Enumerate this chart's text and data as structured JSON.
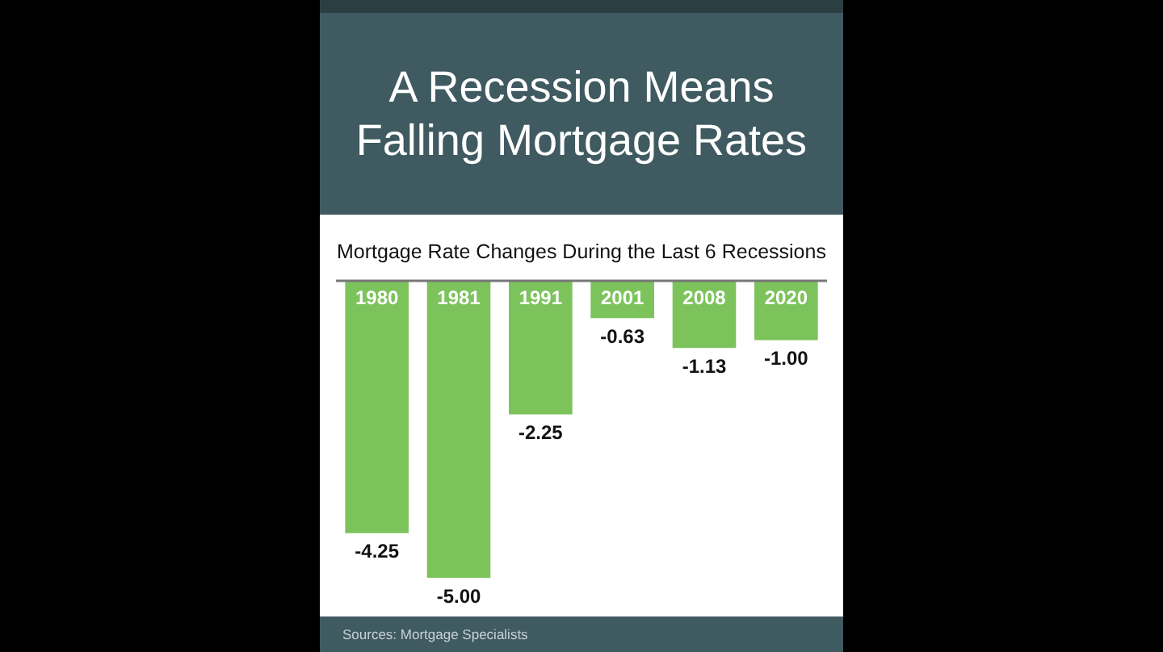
{
  "chart_data": {
    "type": "bar",
    "title": "A Recession Means Falling Mortgage Rates",
    "subtitle": "Mortgage Rate Changes During the Last 6 Recessions",
    "categories": [
      "1980",
      "1981",
      "1991",
      "2001",
      "2008",
      "2020"
    ],
    "values": [
      -4.25,
      -5.0,
      -2.25,
      -0.63,
      -1.13,
      -1.0
    ],
    "value_labels": [
      "-4.25",
      "-5.00",
      "-2.25",
      "-0.63",
      "-1.13",
      "-1.00"
    ],
    "color": "#7cc35c",
    "legend": false,
    "annotations": [
      "Sources: Mortgage Specialists"
    ]
  }
}
